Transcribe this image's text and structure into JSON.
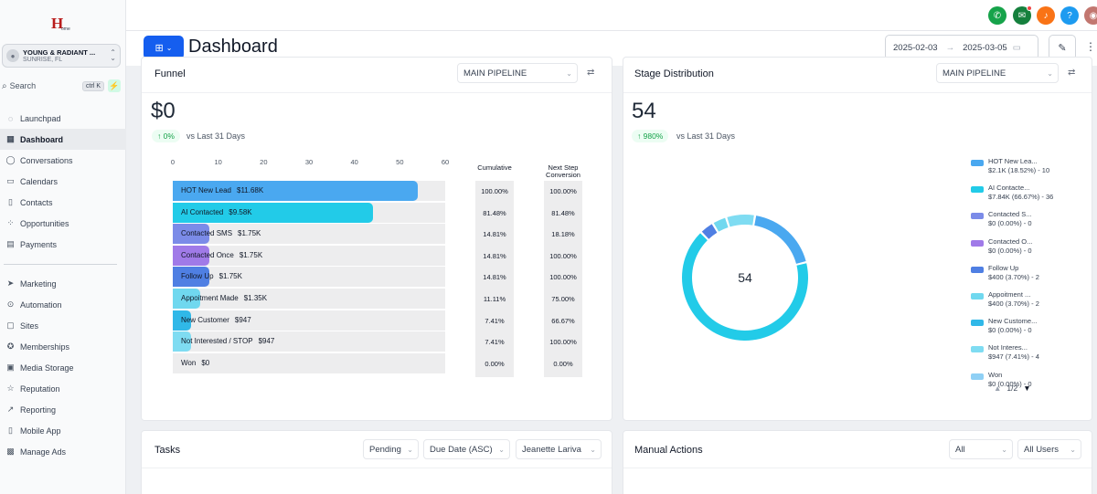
{
  "sidebar": {
    "location": {
      "name": "YOUNG & RADIANT ...",
      "city": "SUNRISE, FL"
    },
    "search": {
      "label": "Search",
      "shortcut": "ctrl K"
    },
    "items": [
      {
        "label": "Launchpad",
        "icon": "rocket-icon"
      },
      {
        "label": "Dashboard",
        "icon": "dashboard-icon"
      },
      {
        "label": "Conversations",
        "icon": "chat-icon"
      },
      {
        "label": "Calendars",
        "icon": "calendar-icon"
      },
      {
        "label": "Contacts",
        "icon": "contacts-icon"
      },
      {
        "label": "Opportunities",
        "icon": "opportunities-icon"
      },
      {
        "label": "Payments",
        "icon": "payments-icon"
      }
    ],
    "items2": [
      {
        "label": "Marketing",
        "icon": "send-icon"
      },
      {
        "label": "Automation",
        "icon": "automation-icon"
      },
      {
        "label": "Sites",
        "icon": "globe-icon"
      },
      {
        "label": "Memberships",
        "icon": "badge-icon"
      },
      {
        "label": "Media Storage",
        "icon": "media-icon"
      },
      {
        "label": "Reputation",
        "icon": "star-icon"
      },
      {
        "label": "Reporting",
        "icon": "chart-line-icon"
      },
      {
        "label": "Mobile App",
        "icon": "mobile-icon"
      },
      {
        "label": "Manage Ads",
        "icon": "ads-icon"
      }
    ]
  },
  "header": {
    "title": "Dashboard",
    "date_start": "2025-02-03",
    "date_end": "2025-03-05"
  },
  "colors": {
    "accent": "#155eef",
    "phone": "#16a34a",
    "megaphone": "#15803d",
    "bell": "#f97316",
    "help": "#1d9bf0"
  },
  "funnel": {
    "title": "Funnel",
    "pipeline": "MAIN PIPELINE",
    "value": "$0",
    "change": "↑ 0%",
    "compare": "vs Last 31 Days",
    "col_cumulative": "Cumulative",
    "col_next": "Next Step Conversion"
  },
  "stage": {
    "title": "Stage Distribution",
    "pipeline": "MAIN PIPELINE",
    "value": "54",
    "change": "↑ 980%",
    "compare": "vs Last 31 Days",
    "center": "54",
    "pager": "1/2"
  },
  "tasks": {
    "title": "Tasks",
    "filter_status": "Pending",
    "filter_sort": "Due Date (ASC)",
    "filter_user": "Jeanette Lariva"
  },
  "manual": {
    "title": "Manual Actions",
    "filter_type": "All",
    "filter_users": "All Users"
  },
  "chart_data": [
    {
      "type": "bar",
      "orientation": "horizontal",
      "title": "Funnel",
      "xlim": [
        0,
        60
      ],
      "xticks": [
        "0",
        "10",
        "20",
        "30",
        "40",
        "50",
        "60"
      ],
      "categories": [
        "HOT New Lead",
        "AI Contacted",
        "Contacted SMS",
        "Contacted Once",
        "Follow Up",
        "Appoitment Made",
        "New Customer",
        "Not Interested / STOP",
        "Won"
      ],
      "amounts": [
        "$11.68K",
        "$9.58K",
        "$1.75K",
        "$1.75K",
        "$1.75K",
        "$1.35K",
        "$947",
        "$947",
        "$0"
      ],
      "values": [
        54,
        44,
        8,
        8,
        8,
        6,
        4,
        4,
        0
      ],
      "colors": [
        "#4aa8f0",
        "#22cbe8",
        "#7b8be8",
        "#a07ae8",
        "#4f7fe3",
        "#70d8ef",
        "#30b8e8",
        "#7fdcf2",
        "#ededee"
      ],
      "cumulative": [
        "100.00%",
        "81.48%",
        "14.81%",
        "14.81%",
        "14.81%",
        "11.11%",
        "7.41%",
        "7.41%",
        "0.00%"
      ],
      "next_step_conversion": [
        "100.00%",
        "81.48%",
        "18.18%",
        "100.00%",
        "100.00%",
        "75.00%",
        "66.67%",
        "100.00%",
        "0.00%"
      ]
    },
    {
      "type": "pie",
      "style": "donut",
      "title": "Stage Distribution",
      "center_label": "54",
      "categories": [
        "HOT New Lea...",
        "AI Contacte...",
        "Contacted S...",
        "Contacted O...",
        "Follow Up",
        "Appoitment ...",
        "New Custome...",
        "Not Interes...",
        "Won"
      ],
      "legend_values": [
        "$2.1K (18.52%) - 10",
        "$7.84K (66.67%) - 36",
        "$0 (0.00%) - 0",
        "$0 (0.00%) - 0",
        "$400 (3.70%) - 2",
        "$400 (3.70%) - 2",
        "$0 (0.00%) - 0",
        "$947 (7.41%) - 4",
        "$0 (0.00%) - 0"
      ],
      "values": [
        10,
        36,
        0,
        0,
        2,
        2,
        0,
        4,
        0
      ],
      "colors": [
        "#4aa8f0",
        "#22cbe8",
        "#7b8be8",
        "#a07ae8",
        "#4f7fe3",
        "#70d8ef",
        "#30b8e8",
        "#7fdcf2",
        "#8fd0f5"
      ],
      "legend_position": "right"
    }
  ]
}
